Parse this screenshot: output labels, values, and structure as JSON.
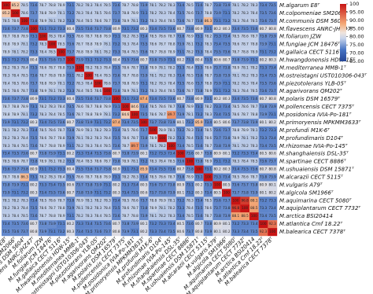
{
  "chart_data": {
    "type": "heatmap",
    "categories": [
      "M.algarum E8ᵀ",
      "M.colpomeniae SM2066ᵀ",
      "M.communis DSM 5604ᵀ",
      "M.flavescens ANRC-JHZ47ᵀ",
      "M.foliarum JZW",
      "M.fungiae JCM 18476ᵀ",
      "M.gallaica CECT 5116ᵀ",
      "M.hwangdonensis HDW-15ᵀ",
      "M.mediterranea MMB-1ᵀ",
      "M.ostreistagni UST010306-043ᵀ",
      "M.piezotolerans YLB-05ᵀ",
      "M.agarivorans QM202ᵀ",
      "M.polaris DSM 16579ᵀ",
      "M.pollencensis CECT 7375ᵀ",
      "M.posidonica IVIA-Po-181ᵀ",
      "M.primoryensis MPKMM3633ᵀ",
      "M.profundi M1K-6ᵀ",
      "M.profundimaris D104ᵀ",
      "M.rhizomae IVIA-Po-145ᵀ",
      "M.shanghaiensis DSL-35ᵀ",
      "M.spartinae CECT 8886ᵀ",
      "M.ushuaiensis DSM 15871ᵀ",
      "M.alcarazii CECT 5115ᵀ",
      "M.vulgaris A79ᵀ",
      "M.algicola SM1966ᵀ",
      "M.aquimarina CECT 5080ᵀ",
      "M.aquiplantarum CECT 7732ᵀ",
      "M.arctica BSI20414",
      "M.atlantica Cmf 18.22ᵀ",
      "M.balearica CECT 7378ᵀ"
    ],
    "values": [
      [
        100,
        85.2,
        78.5,
        73.6,
        78.7,
        78.8,
        78.9,
        73.1,
        78.2,
        78.3,
        78.4,
        78.5,
        73.6,
        78.7,
        78.8,
        73.9,
        78.1,
        78.2,
        78.3,
        73.4,
        78.5,
        73.6,
        78.7,
        73.8,
        73.9,
        78.1,
        78.2,
        78.3,
        73.4,
        73.5
      ],
      [
        85.2,
        100,
        78.6,
        73.7,
        78.8,
        78.9,
        78.1,
        73.2,
        78.3,
        78.4,
        78.5,
        78.6,
        73.7,
        78.8,
        78.9,
        73.1,
        78.2,
        78.3,
        78.4,
        73.5,
        78.6,
        73.7,
        78.8,
        73.9,
        73.1,
        78.2,
        78.3,
        78.4,
        73.5,
        73.6
      ],
      [
        78.5,
        78.6,
        100,
        73.8,
        78.9,
        78.1,
        78.2,
        73.3,
        78.4,
        78.5,
        78.6,
        78.7,
        73.8,
        78.9,
        78.1,
        73.2,
        78.3,
        78.4,
        78.5,
        73.6,
        78.7,
        73.8,
        86.3,
        73.1,
        73.2,
        78.3,
        78.4,
        78.5,
        73.6,
        73.7
      ],
      [
        73.6,
        73.7,
        73.8,
        100,
        73.1,
        73.2,
        73.3,
        80.4,
        73.5,
        73.6,
        73.7,
        73.8,
        80.9,
        73.1,
        73.2,
        80.3,
        73.4,
        73.5,
        73.6,
        80.7,
        73.8,
        80.9,
        73.1,
        80.2,
        80.3,
        73.4,
        73.5,
        73.6,
        80.7,
        80.8
      ],
      [
        78.7,
        78.8,
        78.9,
        73.1,
        100,
        78.3,
        78.4,
        73.5,
        78.6,
        78.7,
        78.8,
        78.9,
        73.1,
        78.2,
        78.3,
        73.4,
        78.5,
        78.6,
        78.7,
        73.8,
        78.9,
        73.1,
        78.2,
        73.3,
        73.4,
        78.5,
        78.6,
        78.7,
        73.8,
        73.9
      ],
      [
        78.8,
        78.9,
        78.1,
        73.2,
        78.3,
        100,
        78.5,
        73.6,
        78.7,
        78.8,
        78.9,
        78.1,
        73.2,
        78.3,
        78.4,
        73.5,
        78.6,
        78.7,
        78.8,
        73.9,
        78.1,
        73.2,
        78.3,
        73.4,
        73.5,
        78.6,
        78.7,
        78.8,
        73.9,
        73.1
      ],
      [
        78.9,
        78.1,
        78.2,
        73.3,
        78.4,
        78.5,
        100,
        73.7,
        78.8,
        78.9,
        78.1,
        78.2,
        73.3,
        78.4,
        78.5,
        73.6,
        78.7,
        78.8,
        78.9,
        73.1,
        78.2,
        73.3,
        78.4,
        73.5,
        73.6,
        78.7,
        78.8,
        78.9,
        73.1,
        73.2
      ],
      [
        73.1,
        73.2,
        73.3,
        80.4,
        73.5,
        73.6,
        73.7,
        100,
        73.9,
        73.1,
        73.2,
        73.3,
        80.4,
        73.5,
        73.6,
        80.7,
        73.8,
        73.9,
        73.1,
        80.2,
        73.3,
        80.4,
        73.5,
        80.6,
        80.7,
        73.8,
        73.9,
        73.1,
        80.2,
        80.3
      ],
      [
        78.2,
        78.3,
        78.4,
        73.5,
        78.6,
        78.7,
        78.8,
        73.9,
        100,
        78.2,
        78.3,
        78.4,
        73.5,
        78.6,
        78.7,
        73.8,
        78.9,
        78.1,
        78.2,
        73.3,
        78.4,
        73.5,
        78.6,
        73.7,
        73.8,
        78.9,
        78.1,
        78.2,
        73.3,
        73.4
      ],
      [
        78.3,
        78.4,
        78.5,
        73.6,
        78.7,
        78.8,
        78.9,
        73.1,
        78.2,
        100,
        78.4,
        78.5,
        73.6,
        78.7,
        78.8,
        73.9,
        78.1,
        78.2,
        78.3,
        73.4,
        78.5,
        73.6,
        78.7,
        73.8,
        73.9,
        78.1,
        78.2,
        78.3,
        73.4,
        73.5
      ],
      [
        78.4,
        78.5,
        78.6,
        73.7,
        78.8,
        78.9,
        78.1,
        73.2,
        78.3,
        78.4,
        100,
        78.6,
        73.7,
        78.8,
        78.9,
        73.1,
        78.2,
        78.3,
        78.4,
        73.5,
        78.6,
        73.7,
        78.8,
        73.9,
        73.1,
        78.2,
        78.3,
        78.4,
        73.5,
        73.6
      ],
      [
        78.5,
        78.6,
        78.7,
        73.8,
        78.9,
        78.1,
        78.2,
        73.3,
        78.4,
        78.5,
        78.6,
        100,
        73.8,
        78.9,
        78.1,
        73.2,
        78.3,
        78.4,
        78.5,
        73.6,
        78.7,
        73.8,
        78.9,
        73.1,
        73.2,
        78.3,
        78.4,
        78.5,
        73.6,
        73.7
      ],
      [
        73.6,
        73.7,
        73.8,
        80.9,
        73.1,
        73.2,
        73.3,
        80.4,
        73.5,
        73.6,
        73.7,
        73.8,
        100,
        73.1,
        73.2,
        87.4,
        73.4,
        73.5,
        73.6,
        80.7,
        73.8,
        80.9,
        73.1,
        80.2,
        80.3,
        73.4,
        73.5,
        73.6,
        80.7,
        80.8
      ],
      [
        78.7,
        78.8,
        78.9,
        73.1,
        78.2,
        78.3,
        78.4,
        73.5,
        78.6,
        78.7,
        78.8,
        78.9,
        73.1,
        100,
        84.6,
        73.4,
        78.5,
        78.6,
        78.7,
        73.8,
        78.9,
        73.1,
        78.2,
        73.3,
        73.4,
        78.5,
        78.6,
        78.7,
        73.8,
        73.9
      ],
      [
        78.8,
        78.9,
        78.1,
        73.2,
        78.3,
        78.4,
        78.5,
        73.6,
        78.7,
        78.8,
        78.9,
        78.1,
        73.2,
        84.6,
        100,
        73.5,
        78.6,
        78.7,
        89.7,
        73.9,
        78.1,
        73.2,
        78.3,
        73.4,
        73.5,
        78.6,
        78.7,
        78.8,
        73.9,
        73.1
      ],
      [
        73.9,
        73.1,
        73.2,
        80.3,
        73.4,
        73.5,
        73.6,
        80.7,
        73.8,
        73.9,
        73.1,
        73.2,
        87.4,
        73.4,
        73.5,
        100,
        73.7,
        73.8,
        73.9,
        80.1,
        73.2,
        85.9,
        73.4,
        80.5,
        80.6,
        73.7,
        73.8,
        73.9,
        80.1,
        80.2
      ],
      [
        78.1,
        78.2,
        78.3,
        73.4,
        78.5,
        78.6,
        78.7,
        73.8,
        78.9,
        78.1,
        78.2,
        78.3,
        73.4,
        78.5,
        78.6,
        73.7,
        100,
        78.9,
        78.1,
        73.2,
        78.3,
        73.4,
        78.5,
        73.6,
        73.7,
        78.8,
        78.9,
        78.1,
        73.2,
        73.3
      ],
      [
        78.2,
        78.3,
        78.4,
        73.5,
        78.6,
        78.7,
        78.8,
        73.9,
        78.1,
        78.2,
        78.3,
        78.4,
        73.5,
        78.6,
        78.7,
        73.8,
        78.9,
        100,
        78.2,
        73.3,
        78.4,
        73.5,
        78.6,
        73.7,
        73.8,
        78.9,
        78.1,
        78.2,
        73.3,
        73.4
      ],
      [
        78.3,
        78.4,
        78.5,
        73.6,
        78.7,
        78.8,
        78.9,
        73.1,
        78.2,
        78.3,
        78.4,
        78.5,
        73.6,
        78.7,
        89.7,
        73.9,
        78.1,
        78.2,
        100,
        73.4,
        78.5,
        73.6,
        78.7,
        73.8,
        73.9,
        78.1,
        78.2,
        78.3,
        73.4,
        73.5
      ],
      [
        73.4,
        73.5,
        73.6,
        80.7,
        73.8,
        73.9,
        73.1,
        80.2,
        73.3,
        73.4,
        73.5,
        73.6,
        80.7,
        73.8,
        73.9,
        80.1,
        73.2,
        73.3,
        73.4,
        100,
        73.6,
        80.7,
        73.8,
        80.9,
        80.1,
        73.2,
        73.3,
        73.4,
        80.5,
        80.6
      ],
      [
        78.5,
        78.6,
        78.7,
        73.8,
        78.9,
        78.1,
        78.2,
        73.3,
        78.4,
        78.5,
        78.6,
        78.7,
        73.8,
        78.9,
        78.1,
        73.2,
        78.3,
        78.4,
        78.5,
        73.6,
        100,
        73.8,
        78.9,
        73.1,
        73.2,
        78.3,
        78.4,
        78.5,
        73.6,
        73.7
      ],
      [
        73.6,
        73.7,
        73.8,
        80.9,
        73.1,
        73.2,
        73.3,
        80.4,
        73.5,
        73.6,
        73.7,
        73.8,
        80.9,
        73.1,
        73.2,
        85.9,
        73.4,
        73.5,
        73.6,
        80.7,
        73.8,
        100,
        73.1,
        80.2,
        80.3,
        73.4,
        73.5,
        73.6,
        80.7,
        80.8
      ],
      [
        78.7,
        78.8,
        86.3,
        73.1,
        78.2,
        78.3,
        78.4,
        73.5,
        78.6,
        78.7,
        78.8,
        78.9,
        73.1,
        78.2,
        78.3,
        73.4,
        78.5,
        78.6,
        78.7,
        73.8,
        78.9,
        73.1,
        100,
        73.3,
        73.4,
        78.5,
        78.6,
        78.7,
        73.8,
        73.9
      ],
      [
        73.8,
        73.9,
        73.1,
        80.2,
        73.3,
        73.4,
        73.5,
        80.6,
        73.7,
        73.8,
        73.9,
        73.1,
        80.2,
        73.3,
        73.4,
        80.5,
        73.6,
        73.7,
        73.8,
        80.9,
        73.1,
        80.2,
        73.3,
        100,
        80.5,
        73.6,
        73.7,
        73.8,
        80.9,
        80.1
      ],
      [
        73.9,
        73.1,
        73.2,
        80.3,
        73.4,
        73.5,
        73.6,
        80.7,
        73.8,
        73.9,
        73.1,
        73.2,
        80.3,
        73.4,
        73.5,
        80.6,
        73.7,
        73.8,
        73.9,
        80.1,
        73.2,
        80.3,
        73.4,
        80.5,
        100,
        73.7,
        73.8,
        73.9,
        80.1,
        80.2
      ],
      [
        78.1,
        78.2,
        78.3,
        73.4,
        78.5,
        78.6,
        78.7,
        73.8,
        78.9,
        78.1,
        78.2,
        78.3,
        73.4,
        78.5,
        78.6,
        73.7,
        78.8,
        78.9,
        78.1,
        73.2,
        78.3,
        73.4,
        78.5,
        73.6,
        73.7,
        100,
        96.8,
        88.1,
        73.2,
        73.3
      ],
      [
        78.2,
        78.3,
        78.4,
        73.5,
        78.6,
        78.7,
        78.8,
        73.9,
        78.1,
        78.2,
        78.3,
        78.4,
        73.5,
        78.6,
        78.7,
        73.8,
        78.9,
        78.1,
        78.2,
        73.3,
        78.4,
        73.5,
        78.6,
        73.7,
        73.8,
        96.8,
        100,
        88.5,
        73.3,
        73.4
      ],
      [
        78.3,
        78.4,
        78.5,
        73.6,
        78.7,
        78.8,
        78.9,
        73.1,
        78.2,
        78.3,
        78.4,
        78.5,
        73.6,
        78.7,
        78.8,
        73.9,
        78.1,
        78.2,
        78.3,
        73.4,
        78.5,
        73.6,
        78.7,
        73.8,
        73.9,
        88.1,
        88.5,
        100,
        73.4,
        73.5
      ],
      [
        73.4,
        73.5,
        73.6,
        80.7,
        73.8,
        73.9,
        73.1,
        80.2,
        73.3,
        73.4,
        73.5,
        73.6,
        80.7,
        73.8,
        73.9,
        80.1,
        73.2,
        73.3,
        73.4,
        80.5,
        73.6,
        80.7,
        73.8,
        80.9,
        80.1,
        73.2,
        73.3,
        73.4,
        100,
        92.3
      ],
      [
        73.5,
        73.6,
        73.7,
        80.8,
        73.9,
        73.1,
        73.2,
        80.3,
        73.4,
        73.5,
        73.6,
        73.7,
        80.8,
        73.9,
        73.1,
        80.2,
        73.3,
        73.4,
        73.5,
        80.6,
        73.7,
        80.8,
        73.9,
        80.1,
        80.2,
        73.3,
        73.4,
        73.5,
        92.3,
        100
      ]
    ],
    "colorbar": {
      "lim": [
        65,
        100
      ],
      "ticks": [
        100,
        {
          "value": 95,
          "label": "95.00"
        },
        {
          "value": 90,
          "label": "90.00"
        },
        {
          "value": 85,
          "label": "85.00"
        },
        {
          "value": 80,
          "label": "80.00"
        },
        {
          "value": 75,
          "label": "75.00"
        },
        {
          "value": 70,
          "label": "70.00"
        },
        {
          "value": 65,
          "label": "65.00"
        }
      ]
    }
  }
}
